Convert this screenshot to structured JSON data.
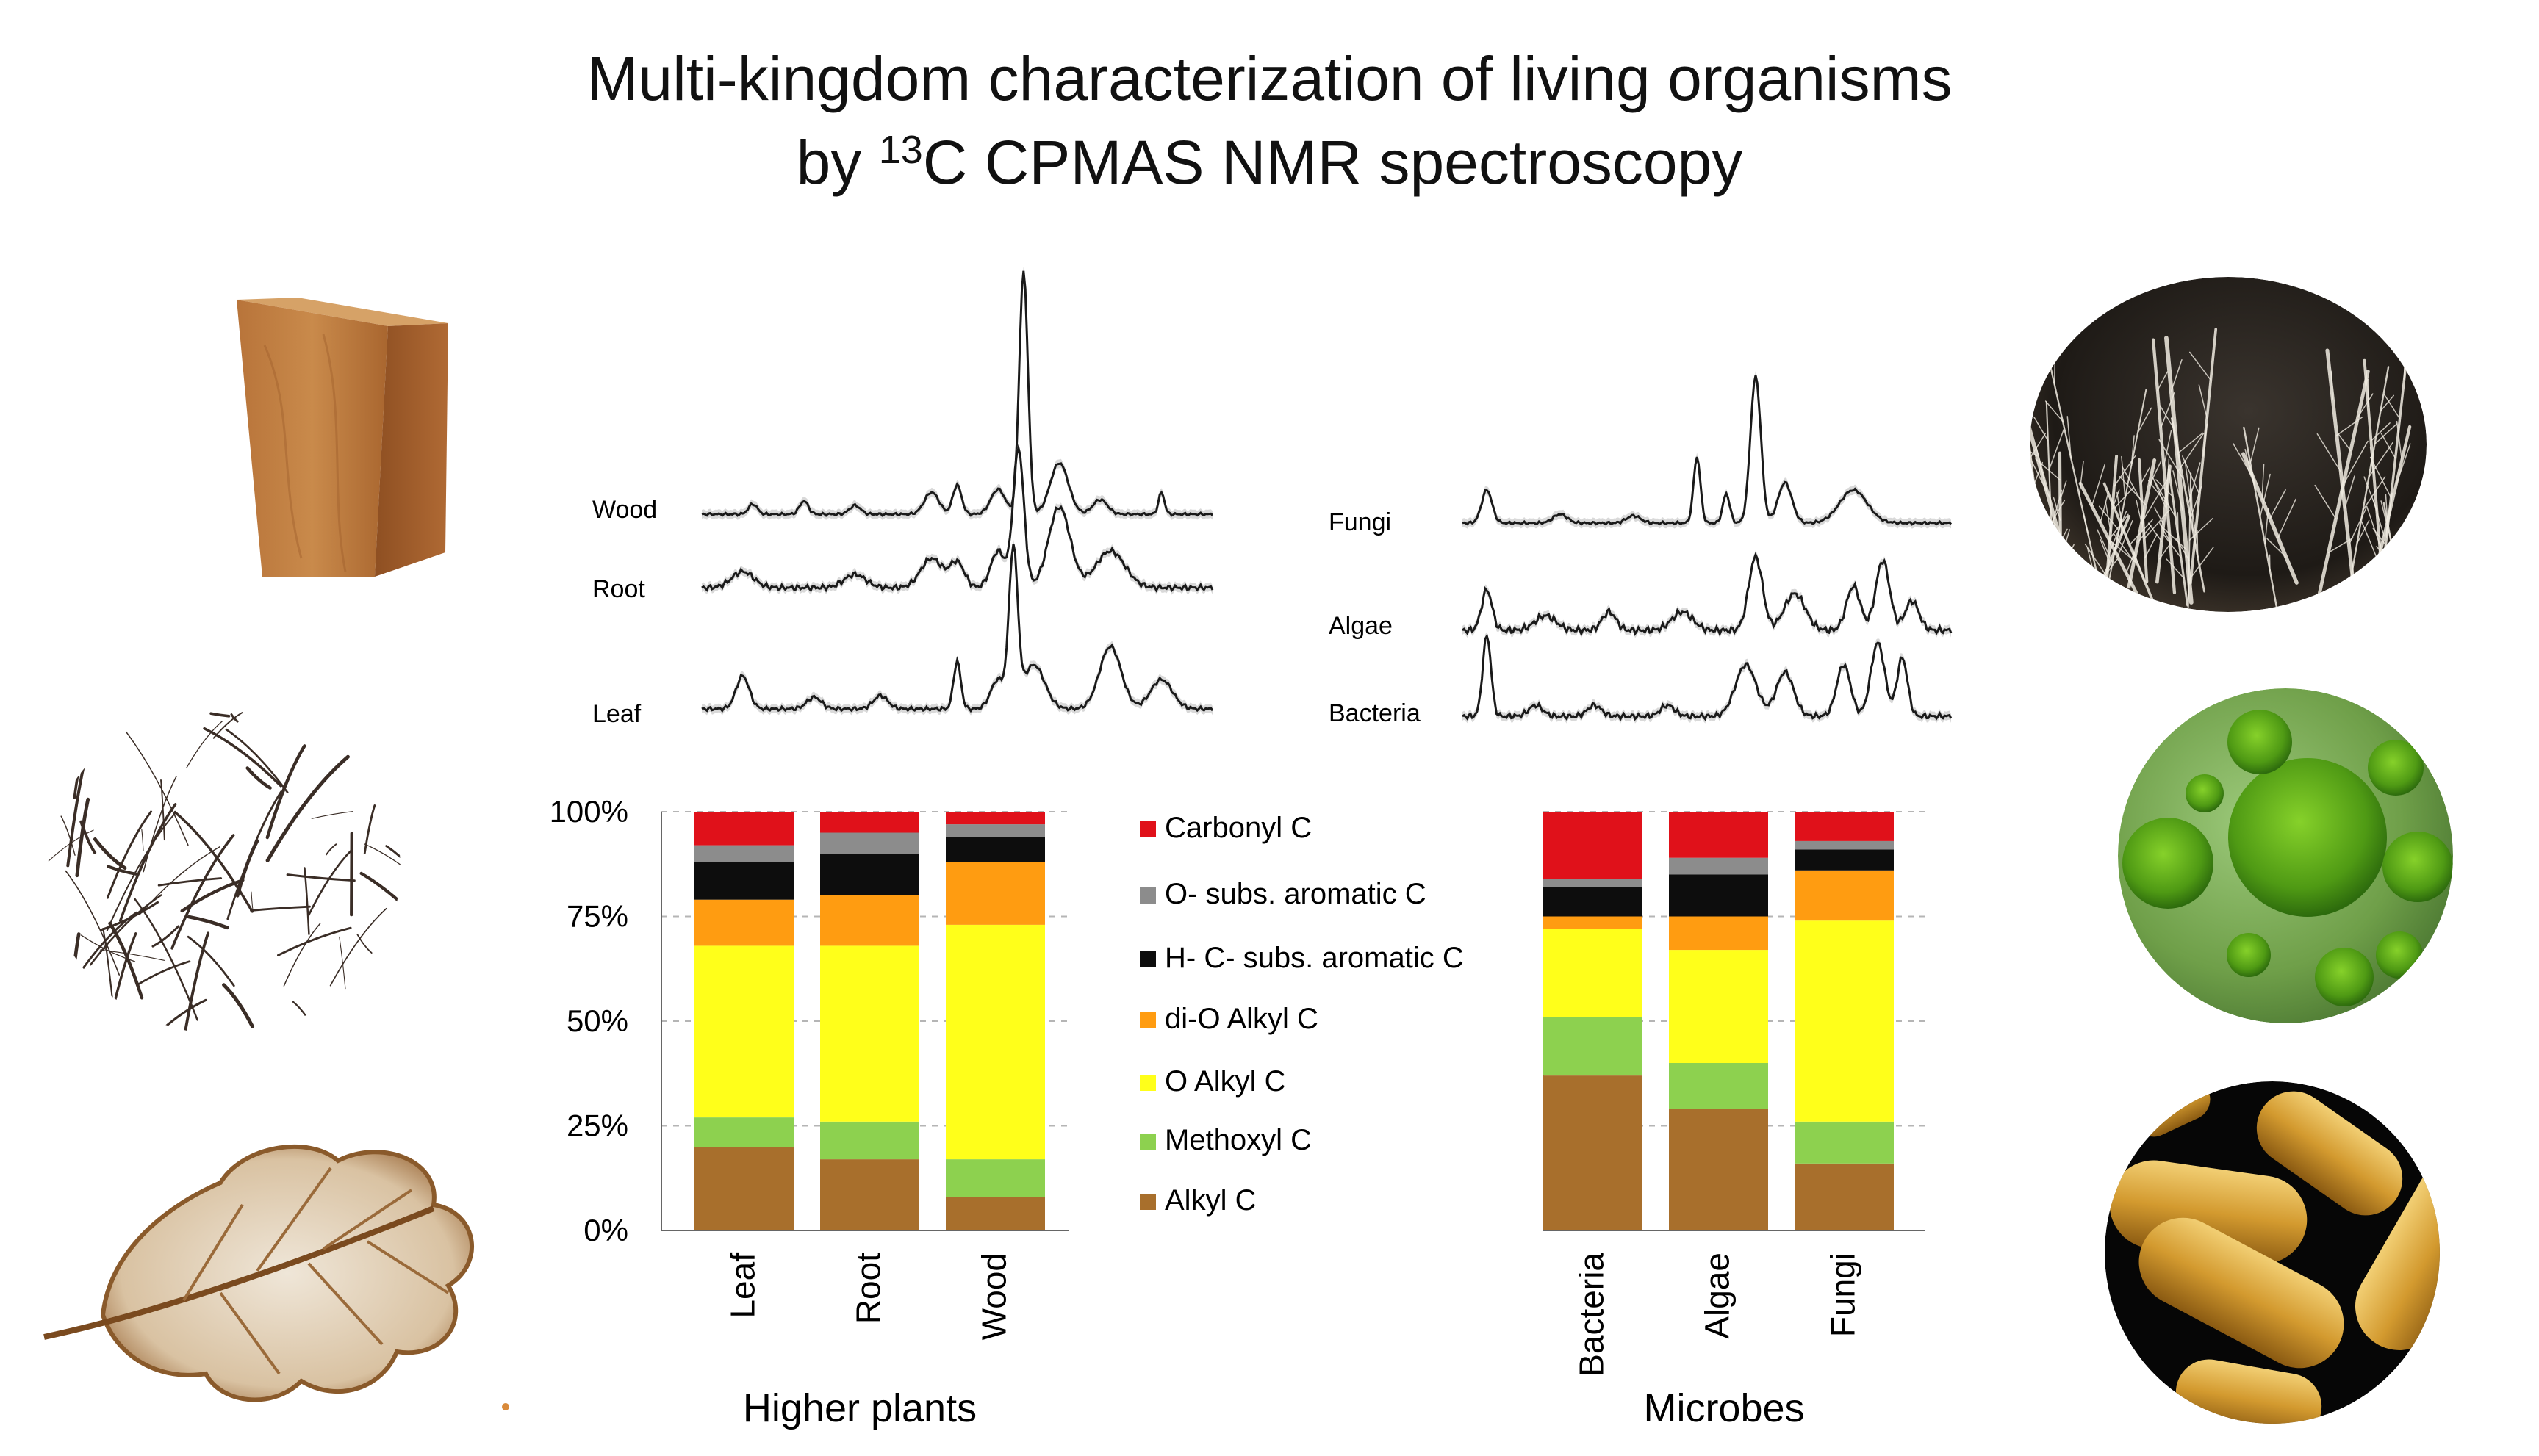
{
  "title": {
    "line1": "Multi-kingdom characterization of living organisms",
    "line2_pre": "by ",
    "line2_sup": "13",
    "line2_post": "C CPMAS NMR spectroscopy"
  },
  "spectra": {
    "plants": [
      "Wood",
      "Root",
      "Leaf"
    ],
    "microbes": [
      "Fungi",
      "Algae",
      "Bacteria"
    ]
  },
  "photos": [
    "wood-block",
    "roots",
    "skeleton-leaf",
    "fungal-mycelium",
    "green-algae",
    "bacteria-rods"
  ],
  "chart_data": [
    {
      "type": "bar",
      "stacked": true,
      "xlabel": "Higher plants",
      "ylim": [
        0,
        100
      ],
      "yticks": [
        "0%",
        "25%",
        "50%",
        "75%",
        "100%"
      ],
      "categories": [
        "Leaf",
        "Root",
        "Wood"
      ],
      "series": [
        {
          "name": "Alkyl C",
          "color": "#a86f2c",
          "values": [
            20,
            17,
            8
          ]
        },
        {
          "name": "Methoxyl C",
          "color": "#8dd14f",
          "values": [
            7,
            9,
            9
          ]
        },
        {
          "name": "O Alkyl C",
          "color": "#ffff1a",
          "values": [
            41,
            42,
            56
          ]
        },
        {
          "name": "di-O Alkyl C",
          "color": "#ff9c11",
          "values": [
            11,
            12,
            15
          ]
        },
        {
          "name": "H- C- subs. aromatic C",
          "color": "#0d0d0d",
          "values": [
            9,
            10,
            6
          ]
        },
        {
          "name": "O- subs. aromatic C",
          "color": "#8c8c8c",
          "values": [
            4,
            5,
            3
          ]
        },
        {
          "name": "Carbonyl C",
          "color": "#e0111a",
          "values": [
            8,
            5,
            3
          ]
        }
      ],
      "grid": "dashed horizontal"
    },
    {
      "type": "bar",
      "stacked": true,
      "xlabel": "Microbes",
      "ylim": [
        0,
        100
      ],
      "categories": [
        "Bacteria",
        "Algae",
        "Fungi"
      ],
      "series": [
        {
          "name": "Alkyl C",
          "color": "#a86f2c",
          "values": [
            37,
            29,
            16
          ]
        },
        {
          "name": "Methoxyl C",
          "color": "#8dd14f",
          "values": [
            14,
            11,
            10
          ]
        },
        {
          "name": "O Alkyl C",
          "color": "#ffff1a",
          "values": [
            21,
            27,
            48
          ]
        },
        {
          "name": "di-O Alkyl C",
          "color": "#ff9c11",
          "values": [
            3,
            8,
            12
          ]
        },
        {
          "name": "H- C- subs. aromatic C",
          "color": "#0d0d0d",
          "values": [
            7,
            10,
            5
          ]
        },
        {
          "name": "O- subs. aromatic C",
          "color": "#8c8c8c",
          "values": [
            2,
            4,
            2
          ]
        },
        {
          "name": "Carbonyl C",
          "color": "#e0111a",
          "values": [
            16,
            11,
            7
          ]
        }
      ],
      "grid": "dashed horizontal"
    }
  ],
  "legend_order": [
    "Carbonyl C",
    "O- subs. aromatic C",
    "H- C- subs. aromatic C",
    "di-O Alkyl C",
    "O Alkyl C",
    "Methoxyl C",
    "Alkyl C"
  ]
}
